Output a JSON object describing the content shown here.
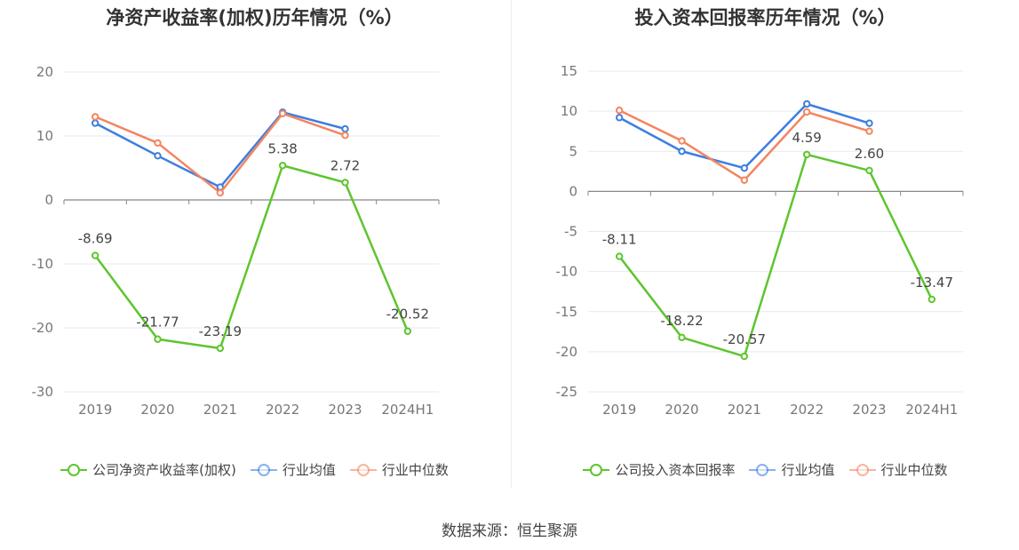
{
  "chart_data": [
    {
      "type": "line",
      "title": "净资产收益率(加权)历年情况（%）",
      "categories": [
        "2019",
        "2020",
        "2021",
        "2022",
        "2023",
        "2024H1"
      ],
      "ylim": [
        -30,
        20
      ],
      "yticks": [
        20,
        10,
        0,
        -10,
        -20,
        -30
      ],
      "grid": true,
      "legend_position": "bottom",
      "series": [
        {
          "name": "公司净资产收益率(加权)",
          "color": "#5ec52e",
          "values": [
            -8.69,
            -21.77,
            -23.19,
            5.38,
            2.72,
            -20.52
          ],
          "labels": [
            "-8.69",
            "-21.77",
            "-23.19",
            "5.38",
            "2.72",
            "-20.52"
          ]
        },
        {
          "name": "行业均值",
          "color": "#3d7ee0",
          "values": [
            12.0,
            6.9,
            2.0,
            13.7,
            11.1,
            null
          ]
        },
        {
          "name": "行业中位数",
          "color": "#f4855f",
          "values": [
            13.0,
            8.9,
            1.1,
            13.5,
            10.1,
            null
          ]
        }
      ]
    },
    {
      "type": "line",
      "title": "投入资本回报率历年情况（%）",
      "categories": [
        "2019",
        "2020",
        "2021",
        "2022",
        "2023",
        "2024H1"
      ],
      "ylim": [
        -25,
        15
      ],
      "yticks": [
        15,
        10,
        5,
        0,
        -5,
        -10,
        -15,
        -20,
        -25
      ],
      "grid": true,
      "legend_position": "bottom",
      "series": [
        {
          "name": "公司投入资本回报率",
          "color": "#5ec52e",
          "values": [
            -8.11,
            -18.22,
            -20.57,
            4.59,
            2.6,
            -13.47
          ],
          "labels": [
            "-8.11",
            "-18.22",
            "-20.57",
            "4.59",
            "2.60",
            "-13.47"
          ]
        },
        {
          "name": "行业均值",
          "color": "#3d7ee0",
          "values": [
            9.2,
            5.0,
            2.9,
            10.9,
            8.5,
            null
          ]
        },
        {
          "name": "行业中位数",
          "color": "#f4855f",
          "values": [
            10.1,
            6.3,
            1.4,
            9.9,
            7.5,
            null
          ]
        }
      ]
    }
  ],
  "source": "数据来源：恒生聚源"
}
